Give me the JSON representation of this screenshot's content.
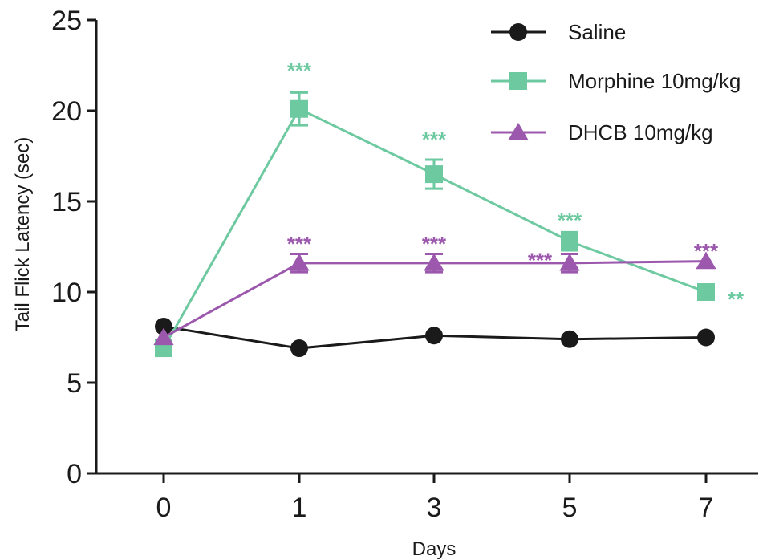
{
  "chart_data": {
    "type": "line",
    "xlabel": "Days",
    "ylabel": "Tail Flick Latency (sec)",
    "x_categories": [
      "0",
      "1",
      "3",
      "5",
      "7"
    ],
    "ylim": [
      0,
      25
    ],
    "yticks": [
      "0",
      "5",
      "10",
      "15",
      "20",
      "25"
    ],
    "grid": false,
    "legend_position": "top-right",
    "series": [
      {
        "name": "Saline",
        "color": "#1a1a1a",
        "marker": "circle",
        "values": [
          8.1,
          6.9,
          7.6,
          7.4,
          7.5
        ],
        "errors": [
          0,
          0,
          0,
          0,
          0
        ]
      },
      {
        "name": "Morphine 10mg/kg",
        "color": "#6dc9a0",
        "marker": "square",
        "values": [
          6.9,
          20.1,
          16.5,
          12.8,
          10.0
        ],
        "errors": [
          0,
          0.9,
          0.8,
          0.5,
          0
        ]
      },
      {
        "name": "DHCB 10mg/kg",
        "color": "#9b58ad",
        "marker": "triangle",
        "values": [
          7.5,
          11.6,
          11.6,
          11.6,
          11.7
        ],
        "errors": [
          0,
          0.5,
          0.5,
          0.5,
          0
        ]
      }
    ],
    "annotations": [
      {
        "series": "Morphine 10mg/kg",
        "x": "1",
        "text": "***"
      },
      {
        "series": "Morphine 10mg/kg",
        "x": "3",
        "text": "***"
      },
      {
        "series": "Morphine 10mg/kg",
        "x": "5",
        "text": "***"
      },
      {
        "series": "Morphine 10mg/kg",
        "x": "7",
        "text": "**"
      },
      {
        "series": "DHCB 10mg/kg",
        "x": "1",
        "text": "***"
      },
      {
        "series": "DHCB 10mg/kg",
        "x": "3",
        "text": "***"
      },
      {
        "series": "DHCB 10mg/kg",
        "x": "5",
        "text": "***"
      },
      {
        "series": "DHCB 10mg/kg",
        "x": "7",
        "text": "***"
      }
    ]
  }
}
